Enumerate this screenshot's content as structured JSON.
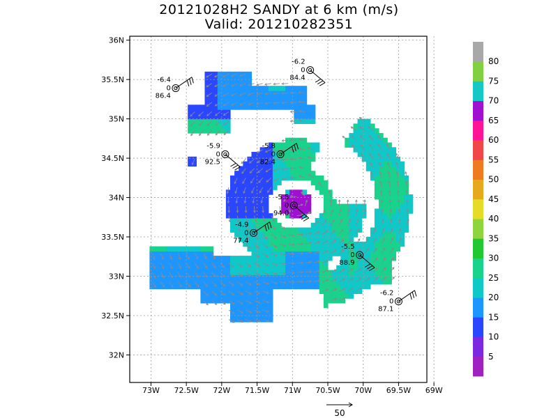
{
  "chart_data": {
    "type": "heatmap",
    "title": "20121028H2 SANDY at 6 km (m/s)",
    "subtitle": "Valid: 201210282351",
    "x_ticks": [
      "73W",
      "72.5W",
      "72W",
      "71.5W",
      "71W",
      "70.5W",
      "70W",
      "69.5W",
      "69W"
    ],
    "y_ticks": [
      "32N",
      "32.5N",
      "33N",
      "33.5N",
      "34N",
      "34.5N",
      "35N",
      "35.5N",
      "36N"
    ],
    "xlim": [
      -73.3,
      -69.1
    ],
    "ylim": [
      31.65,
      36.05
    ],
    "grid": true,
    "center": [
      -70.95,
      33.92
    ],
    "colorbar": {
      "labels": [
        "5",
        "10",
        "15",
        "20",
        "25",
        "30",
        "35",
        "40",
        "45",
        "50",
        "55",
        "60",
        "65",
        "70",
        "75",
        "80"
      ],
      "colors": [
        "#a020c0",
        "#7b28e0",
        "#2a46ff",
        "#1e96ff",
        "#10c8c8",
        "#19d28c",
        "#22c831",
        "#8ed43c",
        "#e4dc28",
        "#e8a81e",
        "#ee7a22",
        "#f04848",
        "#ff1496",
        "#a010d0",
        "#14c8c8",
        "#80d040",
        "#a8a8a8"
      ]
    },
    "vector_scale": {
      "label": "50",
      "value": 50
    },
    "stations": [
      {
        "top": "-6.2",
        "mid": "0",
        "bottom": "84.4",
        "lon": -70.75,
        "lat": 35.62
      },
      {
        "top": "-6.4",
        "mid": "0",
        "bottom": "86.4",
        "lon": -72.65,
        "lat": 35.39
      },
      {
        "top": "-5.9",
        "mid": "0",
        "bottom": "92.5",
        "lon": -71.95,
        "lat": 34.55
      },
      {
        "top": "-5.8",
        "mid": "0",
        "bottom": "82.4",
        "lon": -71.17,
        "lat": 34.55
      },
      {
        "top": "-5.5",
        "mid": "0",
        "bottom": "94.0",
        "lon": -70.98,
        "lat": 33.9
      },
      {
        "top": "-4.9",
        "mid": "0",
        "bottom": "77.4",
        "lon": -71.55,
        "lat": 33.55
      },
      {
        "top": "-5.5",
        "mid": "0",
        "bottom": "88.9",
        "lon": -70.05,
        "lat": 33.27
      },
      {
        "top": "-6.2",
        "mid": "0",
        "bottom": "87.1",
        "lon": -69.5,
        "lat": 32.68
      }
    ]
  }
}
